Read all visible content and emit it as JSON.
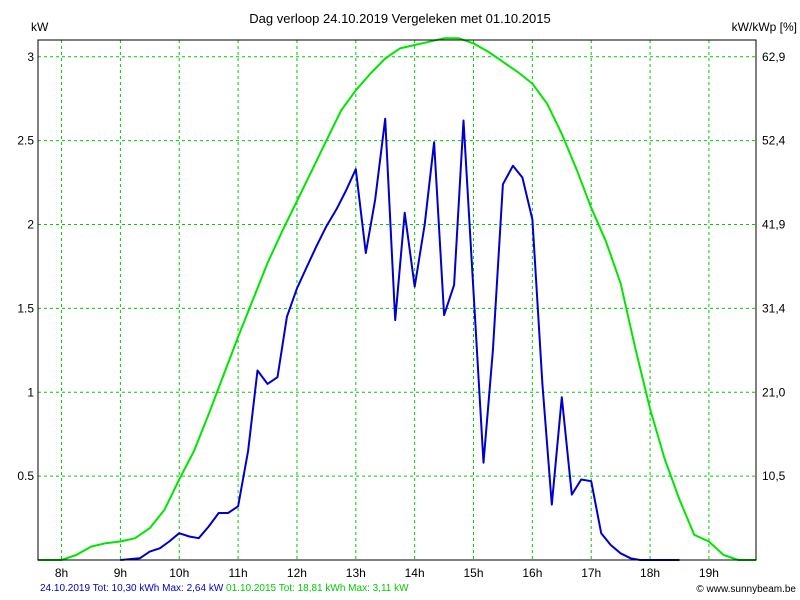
{
  "chart_data": {
    "type": "line",
    "title": "Dag  verloop 24.10.2019   Vergeleken met 01.10.2015",
    "ylabel": "kW",
    "y2label": "kW/kWp [%]",
    "ylim": [
      0,
      3.1
    ],
    "yticks": [
      "0.5",
      "1",
      "1.5",
      "2",
      "2.5",
      "3"
    ],
    "y2ticks": [
      "10,5",
      "21,0",
      "31,4",
      "41,9",
      "52,4",
      "62,9"
    ],
    "xlim": [
      7.6,
      19.8
    ],
    "xticks": [
      "8h",
      "9h",
      "10h",
      "11h",
      "12h",
      "13h",
      "14h",
      "15h",
      "16h",
      "17h",
      "18h",
      "19h"
    ],
    "grid": true,
    "colors": {
      "series_2019": "#0000cc",
      "series_2015": "#00e600",
      "grid": "#00cc00",
      "footer_2019": "#0000cc",
      "footer_2015": "#00cc00"
    },
    "series": [
      {
        "key": "2019",
        "x": [
          9.0,
          9.33,
          9.5,
          9.67,
          9.83,
          10.0,
          10.17,
          10.33,
          10.5,
          10.67,
          10.83,
          11.0,
          11.17,
          11.33,
          11.5,
          11.67,
          11.83,
          12.0,
          12.17,
          12.33,
          12.5,
          12.67,
          12.83,
          13.0,
          13.17,
          13.33,
          13.5,
          13.67,
          13.83,
          14.0,
          14.17,
          14.33,
          14.5,
          14.67,
          14.83,
          15.0,
          15.17,
          15.33,
          15.5,
          15.67,
          15.83,
          16.0,
          16.17,
          16.33,
          16.5,
          16.67,
          16.83,
          17.0,
          17.17,
          17.33,
          17.5,
          17.67,
          17.83,
          18.0,
          18.5
        ],
        "values": [
          0.0,
          0.01,
          0.05,
          0.07,
          0.11,
          0.16,
          0.14,
          0.13,
          0.2,
          0.28,
          0.28,
          0.32,
          0.65,
          1.13,
          1.05,
          1.09,
          1.45,
          1.62,
          1.75,
          1.87,
          1.99,
          2.09,
          2.2,
          2.33,
          1.83,
          2.15,
          2.63,
          1.43,
          2.07,
          1.63,
          2.0,
          2.49,
          1.46,
          1.64,
          2.62,
          1.6,
          0.58,
          1.25,
          2.24,
          2.35,
          2.28,
          2.03,
          1.05,
          0.33,
          0.97,
          0.39,
          0.48,
          0.47,
          0.16,
          0.09,
          0.04,
          0.01,
          0.0,
          0.0,
          0.0
        ]
      },
      {
        "key": "2015",
        "x": [
          7.6,
          8.0,
          8.25,
          8.5,
          8.75,
          9.0,
          9.25,
          9.5,
          9.75,
          10.0,
          10.25,
          10.5,
          10.75,
          11.0,
          11.25,
          11.5,
          11.75,
          12.0,
          12.25,
          12.5,
          12.75,
          13.0,
          13.25,
          13.5,
          13.75,
          14.0,
          14.25,
          14.5,
          14.75,
          15.0,
          15.25,
          15.5,
          15.75,
          16.0,
          16.25,
          16.5,
          16.75,
          17.0,
          17.25,
          17.5,
          17.75,
          18.0,
          18.25,
          18.5,
          18.75,
          19.0,
          19.25,
          19.5,
          19.8
        ],
        "values": [
          0.0,
          0.0,
          0.03,
          0.08,
          0.1,
          0.11,
          0.13,
          0.19,
          0.3,
          0.48,
          0.65,
          0.87,
          1.1,
          1.33,
          1.55,
          1.77,
          1.96,
          2.14,
          2.32,
          2.5,
          2.68,
          2.8,
          2.9,
          2.99,
          3.05,
          3.07,
          3.09,
          3.11,
          3.11,
          3.08,
          3.03,
          2.97,
          2.91,
          2.84,
          2.72,
          2.54,
          2.33,
          2.1,
          1.9,
          1.65,
          1.26,
          0.9,
          0.6,
          0.36,
          0.15,
          0.11,
          0.03,
          0.0,
          0.0
        ]
      }
    ]
  },
  "footer": {
    "line_2019": "24.10.2019 Tot: 10,30 kWh Max: 2,64 kW",
    "line_2015": "01.10.2015 Tot: 18,81 kWh Max: 3,11 kW",
    "credit": "© www.sunnybeam.be"
  }
}
